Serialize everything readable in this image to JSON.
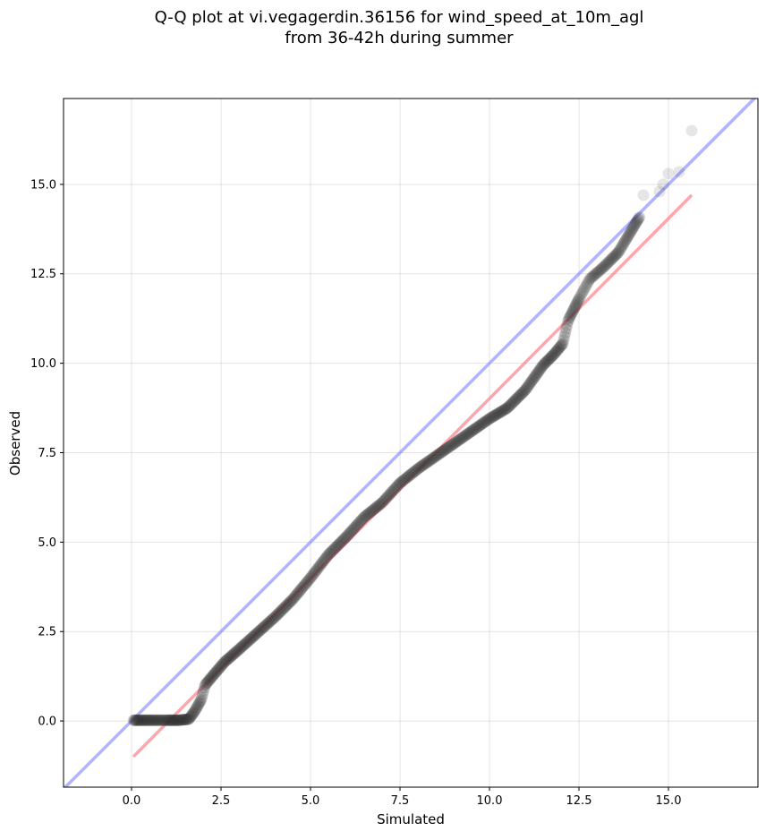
{
  "chart_data": {
    "type": "scatter",
    "title_line1": "Q-Q plot at vi.vegagerdin.36156 for wind_speed_at_10m_agl",
    "title_line2": "from 36-42h during summer",
    "xlabel": "Simulated",
    "ylabel": "Observed",
    "xlim": [
      -1.9,
      17.5
    ],
    "ylim": [
      -1.85,
      17.4
    ],
    "xticks": [
      0.0,
      2.5,
      5.0,
      7.5,
      10.0,
      12.5,
      15.0
    ],
    "yticks": [
      0.0,
      2.5,
      5.0,
      7.5,
      10.0,
      12.5,
      15.0
    ],
    "xtick_labels": [
      "0.0",
      "2.5",
      "5.0",
      "7.5",
      "10.0",
      "12.5",
      "15.0"
    ],
    "ytick_labels": [
      "0.0",
      "2.5",
      "5.0",
      "7.5",
      "10.0",
      "12.5",
      "15.0"
    ],
    "grid": true,
    "reference_line": {
      "color": "#7f7fff",
      "slope": 1,
      "intercept": 0
    },
    "fit_line": {
      "color": "#ff6a75",
      "x": [
        0.05,
        15.65
      ],
      "y": [
        -1.0,
        14.7
      ]
    },
    "point_color": "#333333",
    "quantile_curve": {
      "x": [
        0.05,
        0.3,
        0.6,
        1.0,
        1.3,
        1.6,
        1.75,
        1.95,
        2.05,
        2.3,
        2.6,
        3.0,
        3.5,
        4.0,
        4.5,
        5.0,
        5.5,
        6.0,
        6.5,
        7.0,
        7.5,
        8.0,
        8.5,
        9.0,
        9.5,
        10.0,
        10.5,
        11.0,
        11.5,
        11.8,
        12.05,
        12.2,
        12.5,
        12.8,
        13.2,
        13.6,
        13.9,
        14.2
      ],
      "y": [
        0.02,
        0.02,
        0.02,
        0.02,
        0.02,
        0.05,
        0.25,
        0.6,
        1.0,
        1.3,
        1.65,
        2.0,
        2.45,
        2.9,
        3.4,
        4.0,
        4.65,
        5.15,
        5.7,
        6.1,
        6.65,
        7.05,
        7.4,
        7.75,
        8.1,
        8.45,
        8.75,
        9.25,
        9.95,
        10.25,
        10.55,
        11.2,
        11.8,
        12.35,
        12.7,
        13.1,
        13.6,
        14.1
      ]
    },
    "points_count": 560,
    "tail_points": {
      "x": [
        14.3,
        14.75,
        14.85,
        15.0,
        15.3,
        15.65
      ],
      "y": [
        14.7,
        14.8,
        15.0,
        15.3,
        15.35,
        16.5
      ]
    }
  }
}
